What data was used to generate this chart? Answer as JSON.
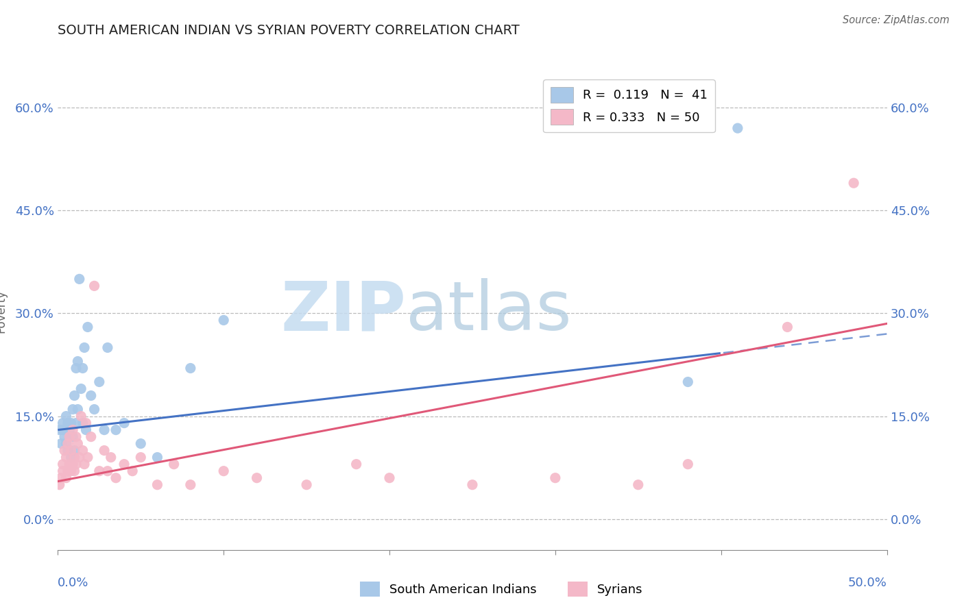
{
  "title": "SOUTH AMERICAN INDIAN VS SYRIAN POVERTY CORRELATION CHART",
  "source": "Source: ZipAtlas.com",
  "ylabel": "Poverty",
  "color_blue": "#a8c8e8",
  "color_pink": "#f4b8c8",
  "color_blue_line": "#4472c4",
  "color_pink_line": "#e05878",
  "xmin": 0.0,
  "xmax": 0.5,
  "ymin": -0.045,
  "ymax": 0.65,
  "ytick_vals": [
    0.0,
    0.15,
    0.3,
    0.45,
    0.6
  ],
  "ytick_labels": [
    "0.0%",
    "15.0%",
    "30.0%",
    "45.0%",
    "60.0%"
  ],
  "xtick_labels_shown": [
    "0.0%",
    "50.0%"
  ],
  "legend_entries": [
    {
      "label": "R =  0.119   N =  41",
      "color": "#a8c8e8"
    },
    {
      "label": "R = 0.333   N = 50",
      "color": "#f4b8c8"
    }
  ],
  "bottom_legend": [
    "South American Indians",
    "Syrians"
  ],
  "sa_x": [
    0.001,
    0.002,
    0.003,
    0.003,
    0.004,
    0.005,
    0.005,
    0.006,
    0.006,
    0.007,
    0.007,
    0.008,
    0.008,
    0.009,
    0.009,
    0.01,
    0.01,
    0.011,
    0.011,
    0.012,
    0.012,
    0.013,
    0.014,
    0.015,
    0.015,
    0.016,
    0.017,
    0.018,
    0.02,
    0.022,
    0.025,
    0.028,
    0.03,
    0.035,
    0.04,
    0.05,
    0.06,
    0.08,
    0.1,
    0.38,
    0.41
  ],
  "sa_y": [
    0.13,
    0.11,
    0.14,
    0.13,
    0.12,
    0.15,
    0.11,
    0.1,
    0.14,
    0.12,
    0.13,
    0.14,
    0.09,
    0.16,
    0.12,
    0.18,
    0.1,
    0.22,
    0.14,
    0.23,
    0.16,
    0.35,
    0.19,
    0.22,
    0.14,
    0.25,
    0.13,
    0.28,
    0.18,
    0.16,
    0.2,
    0.13,
    0.25,
    0.13,
    0.14,
    0.11,
    0.09,
    0.22,
    0.29,
    0.2,
    0.57
  ],
  "sy_x": [
    0.001,
    0.002,
    0.003,
    0.003,
    0.004,
    0.005,
    0.005,
    0.006,
    0.006,
    0.007,
    0.007,
    0.008,
    0.008,
    0.009,
    0.009,
    0.01,
    0.01,
    0.011,
    0.011,
    0.012,
    0.013,
    0.014,
    0.015,
    0.016,
    0.017,
    0.018,
    0.02,
    0.022,
    0.025,
    0.028,
    0.03,
    0.032,
    0.035,
    0.04,
    0.045,
    0.05,
    0.06,
    0.07,
    0.08,
    0.1,
    0.12,
    0.15,
    0.18,
    0.2,
    0.25,
    0.3,
    0.35,
    0.38,
    0.44,
    0.48
  ],
  "sy_y": [
    0.05,
    0.06,
    0.08,
    0.07,
    0.1,
    0.06,
    0.09,
    0.07,
    0.11,
    0.08,
    0.12,
    0.07,
    0.1,
    0.08,
    0.13,
    0.09,
    0.07,
    0.12,
    0.08,
    0.11,
    0.09,
    0.15,
    0.1,
    0.08,
    0.14,
    0.09,
    0.12,
    0.34,
    0.07,
    0.1,
    0.07,
    0.09,
    0.06,
    0.08,
    0.07,
    0.09,
    0.05,
    0.08,
    0.05,
    0.07,
    0.06,
    0.05,
    0.08,
    0.06,
    0.05,
    0.06,
    0.05,
    0.08,
    0.28,
    0.49
  ],
  "blue_line_solid_end": 0.4,
  "watermark_zip_color": "#c5dcf0",
  "watermark_atlas_color": "#b0cce0"
}
